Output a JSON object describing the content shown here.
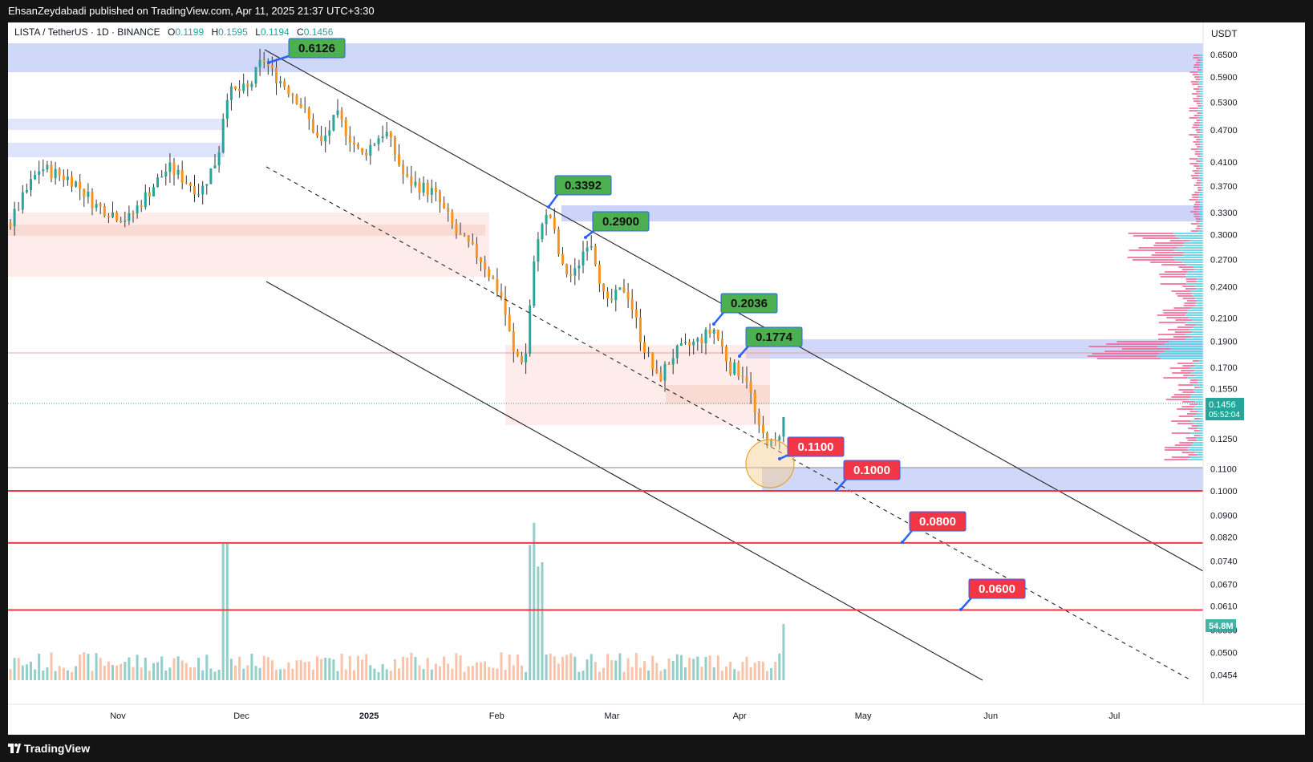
{
  "header": {
    "publisher_text": "EhsanZeydabadi published on TradingView.com, Apr 11, 2025 21:37 UTC+3:30"
  },
  "footer": {
    "brand": "TradingView"
  },
  "chart_data": {
    "type": "candlestick",
    "symbol_line": {
      "symbol": "LISTA / TetherUS · 1D · BINANCE",
      "o_label": "O",
      "o_value": "0.1199",
      "h_label": "H",
      "h_value": "0.1595",
      "l_label": "L",
      "l_value": "0.1194",
      "c_label": "C",
      "c_value": "0.1456"
    },
    "currency": "USDT",
    "y_scale": "log",
    "y_ticks": [
      "0.6500",
      "0.5900",
      "0.5300",
      "0.4700",
      "0.4100",
      "0.3700",
      "0.3300",
      "0.3000",
      "0.2700",
      "0.2400",
      "0.2100",
      "0.1900",
      "0.1700",
      "0.1550",
      "0.1250",
      "0.1100",
      "0.1000",
      "0.0900",
      "0.0820",
      "0.0740",
      "0.0670",
      "0.0610",
      "0.0550",
      "0.0500",
      "0.0454"
    ],
    "y_tick_values": [
      0.65,
      0.59,
      0.53,
      0.47,
      0.41,
      0.37,
      0.33,
      0.3,
      0.27,
      0.24,
      0.21,
      0.19,
      0.17,
      0.155,
      0.125,
      0.11,
      0.1,
      0.09,
      0.082,
      0.074,
      0.067,
      0.061,
      0.055,
      0.05,
      0.0454
    ],
    "x_ticks": [
      "Nov",
      "Dec",
      "2025",
      "Feb",
      "Mar",
      "Apr",
      "May",
      "Jun",
      "Jul"
    ],
    "x_tick_dates": [
      "2024-11-01",
      "2024-12-01",
      "2025-01-01",
      "2025-02-01",
      "2025-03-01",
      "2025-04-01",
      "2025-05-01",
      "2025-06-01",
      "2025-07-01"
    ],
    "last_price": {
      "value": "0.1456",
      "countdown": "05:52:04"
    },
    "volume_label": "54.8M",
    "annotations": [
      {
        "text": "0.6126",
        "kind": "resistance",
        "value": 0.6126
      },
      {
        "text": "0.3392",
        "kind": "resistance",
        "value": 0.3392
      },
      {
        "text": "0.2900",
        "kind": "resistance",
        "value": 0.29
      },
      {
        "text": "0.2036",
        "kind": "resistance",
        "value": 0.2036
      },
      {
        "text": "0.1774",
        "kind": "resistance",
        "value": 0.1774
      },
      {
        "text": "0.1100",
        "kind": "support",
        "value": 0.11
      },
      {
        "text": "0.1000",
        "kind": "support",
        "value": 0.1
      },
      {
        "text": "0.0800",
        "kind": "support",
        "value": 0.08
      },
      {
        "text": "0.0600",
        "kind": "support",
        "value": 0.06
      }
    ],
    "horizontal_levels": [
      0.1,
      0.08,
      0.06
    ],
    "series_colors": {
      "up": "#26a69a",
      "down": "#f7931a",
      "support": "#f23645",
      "resistance": "#4caf50",
      "zone_blue": "#aab8f5",
      "zone_red": "#f8c9c0"
    }
  }
}
